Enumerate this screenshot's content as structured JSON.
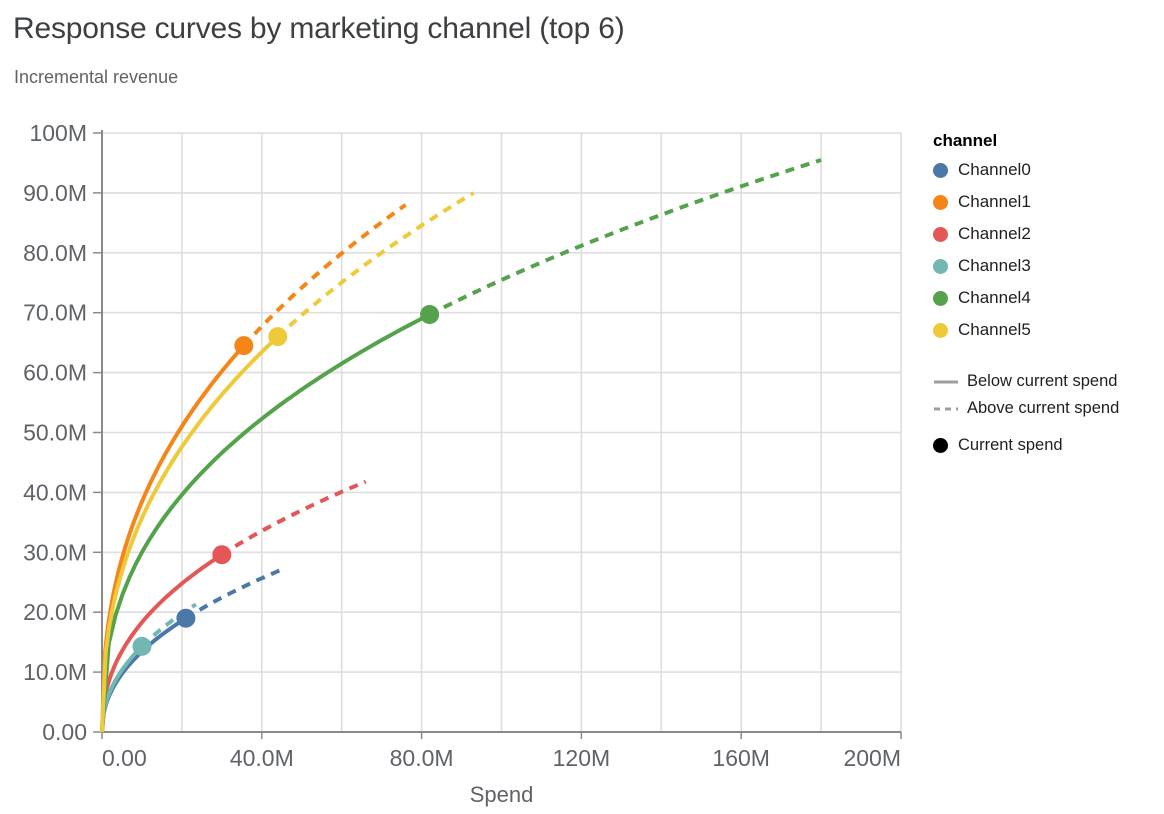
{
  "chart": {
    "title": "Response curves by marketing channel (top 6)",
    "subtitle": "Incremental revenue"
  },
  "legend": {
    "title": "channel",
    "line_styles": [
      {
        "label": "Below current spend",
        "style": "solid"
      },
      {
        "label": "Above current spend",
        "style": "dashed"
      }
    ],
    "point_style": {
      "label": "Current spend",
      "color": "#000000"
    }
  },
  "chart_data": {
    "type": "line",
    "title": "Response curves by marketing channel (top 6)",
    "subtitle": "Incremental revenue",
    "xlabel": "Spend",
    "ylabel": "Incremental revenue",
    "units": "millions",
    "xlim": [
      0,
      200
    ],
    "ylim": [
      0,
      100
    ],
    "grid": true,
    "legend_position": "right",
    "x_ticks": {
      "values": [
        0,
        40,
        80,
        120,
        160,
        200
      ],
      "labels": [
        "0.00",
        "40.0M",
        "80.0M",
        "120M",
        "160M",
        "200M"
      ],
      "minor_step": 20
    },
    "y_ticks": {
      "values": [
        0,
        10,
        20,
        30,
        40,
        50,
        60,
        70,
        80,
        90,
        100
      ],
      "labels": [
        "0.00",
        "10.0M",
        "20.0M",
        "30.0M",
        "40.0M",
        "50.0M",
        "60.0M",
        "70.0M",
        "80.0M",
        "90.0M",
        "100M"
      ]
    },
    "solid_segment_meaning": "Below current spend",
    "dashed_segment_meaning": "Above current spend",
    "dot_meaning": "Current spend",
    "curve_model": "power law y = a*x^b through origin, fitted to current_spend and max points",
    "series": [
      {
        "name": "Channel0",
        "color": "#4c78a8",
        "current_spend": 21,
        "current_revenue": 19,
        "max_spend": 46,
        "max_revenue": 27.4
      },
      {
        "name": "Channel1",
        "color": "#f58518",
        "current_spend": 35.5,
        "current_revenue": 64.5,
        "max_spend": 76,
        "max_revenue": 88
      },
      {
        "name": "Channel2",
        "color": "#e45756",
        "current_spend": 30,
        "current_revenue": 29.6,
        "max_spend": 66,
        "max_revenue": 41.8
      },
      {
        "name": "Channel3",
        "color": "#72b7b2",
        "current_spend": 10,
        "current_revenue": 14.3,
        "max_spend": 23.5,
        "max_revenue": 21.3
      },
      {
        "name": "Channel4",
        "color": "#54a24b",
        "current_spend": 82,
        "current_revenue": 69.7,
        "max_spend": 180,
        "max_revenue": 95.5
      },
      {
        "name": "Channel5",
        "color": "#eeca3b",
        "current_spend": 44,
        "current_revenue": 66,
        "max_spend": 93,
        "max_revenue": 90
      }
    ]
  }
}
